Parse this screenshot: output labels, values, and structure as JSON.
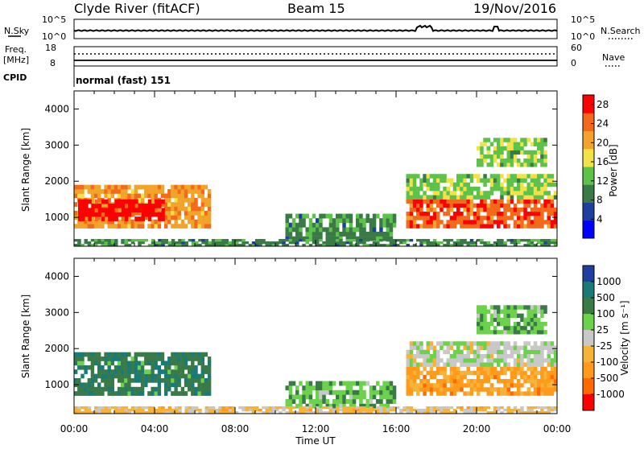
{
  "header": {
    "station": "Clyde River (fitACF)",
    "beam": "Beam 15",
    "date": "19/Nov/2016"
  },
  "top_panel_1": {
    "left_label": "N.Sky",
    "left_ticks": [
      "10^5",
      "10^0"
    ],
    "right_label": "N.Search",
    "right_ticks": [
      "10^5",
      "10^0"
    ]
  },
  "top_panel_2": {
    "left_label_1": "Freq.",
    "left_label_2": "[MHz]",
    "left_ticks": [
      "18",
      "8"
    ],
    "right_label": "Nave",
    "right_ticks": [
      "60",
      "0"
    ],
    "cpid_label": "CPID",
    "cpid_value": "normal (fast) 151"
  },
  "colors": {
    "power_scale": [
      "#0000ff",
      "#1f3f9f",
      "#3a7a46",
      "#5cc24a",
      "#f3e14a",
      "#f2a32a",
      "#f26a1a",
      "#ff0000"
    ],
    "velocity_scale": [
      "#ff0000",
      "#ff6a00",
      "#ff9a1a",
      "#f7b23a",
      "#c8c8c8",
      "#6cd24c",
      "#3a7a46",
      "#1a7a7a",
      "#1f3f9f"
    ]
  },
  "chart_data": [
    {
      "type": "heatmap",
      "title": "",
      "xlabel": "Time UT",
      "ylabel": "Slant Range [km]",
      "xlim": [
        "00:00",
        "24:00"
      ],
      "ylim": [
        200,
        4500
      ],
      "xticks": [
        "00:00",
        "04:00",
        "08:00",
        "12:00",
        "16:00",
        "20:00",
        "00:00"
      ],
      "yticks": [
        "1000",
        "2000",
        "3000",
        "4000"
      ],
      "colorbar": {
        "label": "Power [dB]",
        "ticks": [
          "4",
          "8",
          "12",
          "16",
          "20",
          "24",
          "28"
        ],
        "range": [
          0,
          30
        ]
      },
      "regions": [
        {
          "t_start": 0.0,
          "t_end": 6.8,
          "r_start": 700,
          "r_end": 1900,
          "value": 20
        },
        {
          "t_start": 0.2,
          "t_end": 4.5,
          "r_start": 900,
          "r_end": 1500,
          "value": 28
        },
        {
          "t_start": 16.5,
          "t_end": 24.0,
          "r_start": 700,
          "r_end": 1500,
          "value": 27
        },
        {
          "t_start": 16.5,
          "t_end": 24.0,
          "r_start": 1500,
          "r_end": 2200,
          "value": 14
        },
        {
          "t_start": 20.0,
          "t_end": 23.5,
          "r_start": 2400,
          "r_end": 3200,
          "value": 12
        },
        {
          "t_start": 10.5,
          "t_end": 16.0,
          "r_start": 350,
          "r_end": 1100,
          "value": 10
        },
        {
          "t_start": 0.0,
          "t_end": 24.0,
          "r_start": 200,
          "r_end": 400,
          "value": 9
        }
      ]
    },
    {
      "type": "heatmap",
      "title": "",
      "xlabel": "Time UT",
      "ylabel": "Slant Range [km]",
      "xlim": [
        "00:00",
        "24:00"
      ],
      "ylim": [
        200,
        4500
      ],
      "xticks": [
        "00:00",
        "04:00",
        "08:00",
        "12:00",
        "16:00",
        "20:00",
        "00:00"
      ],
      "yticks": [
        "1000",
        "2000",
        "3000",
        "4000"
      ],
      "colorbar": {
        "label": "Velocity [m s⁻¹]",
        "ticks": [
          "1000",
          "500",
          "100",
          "25",
          "-25",
          "-100",
          "-500",
          "-1000"
        ],
        "range": [
          -1000,
          1000
        ]
      },
      "regions": [
        {
          "t_start": 0.0,
          "t_end": 6.8,
          "r_start": 700,
          "r_end": 1900,
          "value": 300
        },
        {
          "t_start": 16.5,
          "t_end": 24.0,
          "r_start": 700,
          "r_end": 1500,
          "value": -100
        },
        {
          "t_start": 16.5,
          "t_end": 24.0,
          "r_start": 1500,
          "r_end": 2200,
          "value": 0
        },
        {
          "t_start": 20.0,
          "t_end": 23.5,
          "r_start": 2400,
          "r_end": 3200,
          "value": 60
        },
        {
          "t_start": 10.5,
          "t_end": 16.0,
          "r_start": 350,
          "r_end": 1100,
          "value": 80
        },
        {
          "t_start": 0.0,
          "t_end": 24.0,
          "r_start": 200,
          "r_end": 400,
          "value": -60
        }
      ]
    }
  ]
}
